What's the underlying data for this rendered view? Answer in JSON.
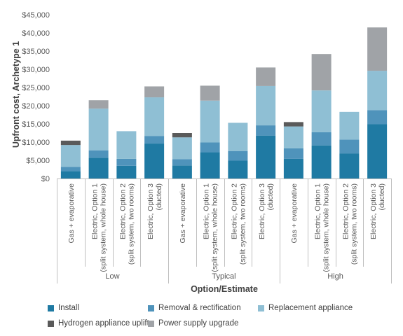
{
  "chart_data": {
    "type": "bar",
    "stacked": true,
    "xlabel": "Option/Estimate",
    "ylabel": "Upfront cost, Archetype 1",
    "ylim": [
      0,
      45000
    ],
    "yticks": [
      "$0",
      "$5,000",
      "$10,000",
      "$15,000",
      "$20,000",
      "$25,000",
      "$30,000",
      "$35,000",
      "$40,000",
      "$45,000"
    ],
    "categories": [
      [
        "Gas + evaporative"
      ],
      [
        "Electric, Option 1",
        "(split system, whole house)"
      ],
      [
        "Electric, Option 2",
        "(split system, two rooms)"
      ],
      [
        "Electric, Option 3",
        "(ducted)"
      ],
      [
        "Gas + evaporative"
      ],
      [
        "Electric, Option 1",
        "(split system, whole house)"
      ],
      [
        "Electric, Option 2",
        "(split system, two rooms)"
      ],
      [
        "Electric, Option 3",
        "(ducted)"
      ],
      [
        "Gas + evaporative"
      ],
      [
        "Electric, Option 1",
        "(split system, whole house)"
      ],
      [
        "Electric, Option 2",
        "(split system, two rooms)"
      ],
      [
        "Electric, Option 3",
        "(ducted)"
      ]
    ],
    "groups": [
      {
        "label": "Low",
        "start": 0,
        "end": 3
      },
      {
        "label": "Typical",
        "start": 4,
        "end": 7
      },
      {
        "label": "High",
        "start": 8,
        "end": 11
      }
    ],
    "series": [
      {
        "name": "Install",
        "color": "#1f7aa3",
        "values": [
          2000,
          5700,
          3500,
          9600,
          3600,
          7200,
          4900,
          11800,
          5400,
          9100,
          6900,
          14900
        ]
      },
      {
        "name": "Removal & rectification",
        "color": "#4f93bb",
        "values": [
          1200,
          2000,
          1900,
          2100,
          1700,
          2700,
          2600,
          2800,
          2900,
          3600,
          3800,
          3900
        ]
      },
      {
        "name": "Replacement appliance",
        "color": "#8fbfd4",
        "values": [
          6000,
          11500,
          7600,
          10600,
          6000,
          11500,
          7800,
          10800,
          6000,
          11500,
          7600,
          10800
        ]
      },
      {
        "name": "Hydrogen appliance uplift",
        "color": "#5a5a5a",
        "values": [
          1200,
          0,
          0,
          0,
          1200,
          0,
          0,
          0,
          1200,
          0,
          0,
          0
        ]
      },
      {
        "name": "Power supply upgrade",
        "color": "#a0a3a7",
        "values": [
          0,
          2300,
          0,
          3000,
          0,
          4100,
          0,
          5100,
          0,
          10000,
          0,
          11900
        ]
      }
    ],
    "legend": "bottom",
    "grid": false
  }
}
